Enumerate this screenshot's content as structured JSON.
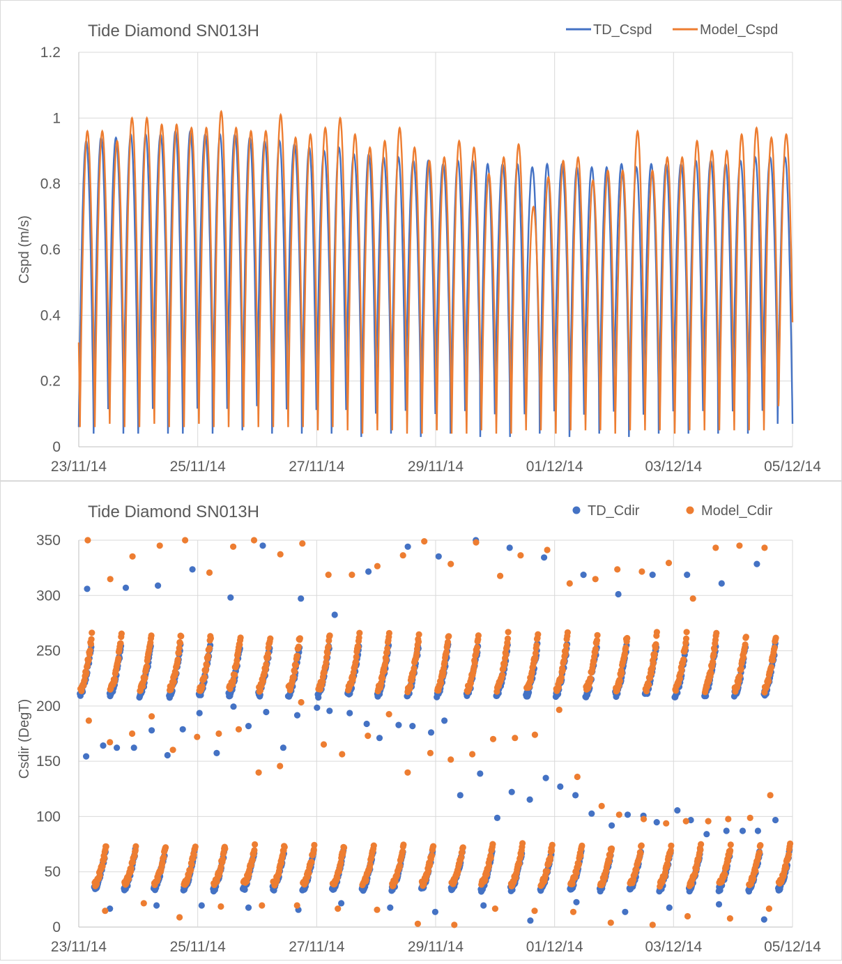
{
  "chart_data": [
    {
      "type": "line",
      "title": "Tide Diamond SN013H",
      "ylabel": "Cspd (m/s)",
      "xlabel": "",
      "x_range": [
        "2014-11-23",
        "2014-12-05"
      ],
      "x_tick_labels": [
        "23/11/14",
        "25/11/14",
        "27/11/14",
        "29/11/14",
        "01/12/14",
        "03/12/14",
        "05/12/14"
      ],
      "ylim": [
        0,
        1.2
      ],
      "y_tick_labels": [
        "0",
        "0.2",
        "0.4",
        "0.6",
        "0.8",
        "1",
        "1.2"
      ],
      "grid": true,
      "legend_position": "top-right",
      "series": [
        {
          "name": "TD_Cspd",
          "color": "#4472C4",
          "semidiurnal_peaks": [
            0.93,
            0.94,
            0.94,
            0.95,
            0.95,
            0.95,
            0.96,
            0.96,
            0.95,
            0.95,
            0.95,
            0.94,
            0.93,
            0.93,
            0.92,
            0.91,
            0.9,
            0.91,
            0.89,
            0.89,
            0.88,
            0.88,
            0.87,
            0.87,
            0.86,
            0.87,
            0.87,
            0.86,
            0.86,
            0.86,
            0.85,
            0.86,
            0.86,
            0.85,
            0.85,
            0.85,
            0.86,
            0.85,
            0.86,
            0.86,
            0.86,
            0.87,
            0.87,
            0.86,
            0.87,
            0.88,
            0.88,
            0.88
          ],
          "troughs_approx": [
            0.06,
            0.04,
            0.16,
            0.04,
            0.04,
            0.18,
            0.04,
            0.04,
            0.17,
            0.04,
            0.19,
            0.05,
            0.17,
            0.04,
            0.19,
            0.04,
            0.16,
            0.04,
            0.18,
            0.03,
            0.16,
            0.04,
            0.16,
            0.03,
            0.14,
            0.04,
            0.16,
            0.03,
            0.14,
            0.03,
            0.15,
            0.04,
            0.16,
            0.03,
            0.14,
            0.04,
            0.16,
            0.03,
            0.14,
            0.04,
            0.15,
            0.04,
            0.15,
            0.04,
            0.16,
            0.04,
            0.17,
            0.07
          ]
        },
        {
          "name": "Model_Cspd",
          "color": "#ED7D31",
          "semidiurnal_peaks": [
            0.96,
            0.96,
            0.93,
            1.0,
            1.0,
            0.98,
            0.98,
            0.97,
            0.97,
            1.02,
            0.97,
            0.96,
            0.96,
            1.01,
            0.94,
            0.95,
            0.97,
            1.0,
            0.95,
            0.91,
            0.93,
            0.97,
            0.91,
            0.87,
            0.88,
            0.93,
            0.91,
            0.83,
            0.88,
            0.92,
            0.73,
            0.82,
            0.87,
            0.88,
            0.81,
            0.84,
            0.84,
            0.96,
            0.84,
            0.88,
            0.88,
            0.93,
            0.9,
            0.9,
            0.95,
            0.97,
            0.94,
            0.95
          ],
          "troughs_approx": [
            0.06,
            0.06,
            0.07,
            0.06,
            0.06,
            0.07,
            0.06,
            0.06,
            0.07,
            0.06,
            0.06,
            0.06,
            0.05,
            0.06,
            0.06,
            0.05,
            0.05,
            0.06,
            0.05,
            0.04,
            0.05,
            0.05,
            0.04,
            0.04,
            0.05,
            0.04,
            0.04,
            0.05,
            0.04,
            0.04,
            0.05,
            0.05,
            0.04,
            0.05,
            0.05,
            0.05,
            0.04,
            0.05,
            0.05,
            0.05,
            0.04,
            0.05,
            0.05,
            0.05,
            0.05,
            0.05,
            0.05,
            0.15
          ]
        }
      ]
    },
    {
      "type": "scatter",
      "title": "Tide Diamond SN013H",
      "ylabel": "Csdir (DegT)",
      "xlabel": "",
      "x_range": [
        "2014-11-23",
        "2014-12-05"
      ],
      "x_tick_labels": [
        "23/11/14",
        "25/11/14",
        "27/11/14",
        "29/11/14",
        "01/12/14",
        "03/12/14",
        "05/12/14"
      ],
      "ylim": [
        0,
        360
      ],
      "y_tick_labels": [
        "0",
        "50",
        "100",
        "150",
        "200",
        "250",
        "300",
        "350"
      ],
      "grid": true,
      "legend_position": "top-right",
      "series": [
        {
          "name": "TD_Cdir",
          "color": "#4472C4",
          "flood_cluster_range": [
            215,
            260
          ],
          "ebb_cluster_range": [
            35,
            70
          ],
          "outliers_high": [
            313,
            314,
            316,
            331,
            305,
            353,
            304,
            289,
            329,
            352,
            343,
            358,
            351,
            342,
            326,
            308,
            326,
            326,
            318,
            336
          ],
          "outliers_mid": [
            158,
            168,
            166,
            166,
            182,
            159,
            183,
            198,
            161,
            204,
            186,
            199,
            166,
            196,
            203,
            200,
            198,
            188,
            175,
            187,
            186,
            180,
            191,
            122,
            142,
            101,
            125,
            118,
            138,
            130,
            122,
            105,
            94,
            104,
            103,
            97,
            108,
            99,
            86,
            89,
            89,
            89,
            99
          ],
          "outliers_low": [
            17,
            20,
            20,
            18,
            16,
            22,
            18,
            14,
            20,
            6,
            23,
            14,
            18,
            21,
            7
          ]
        },
        {
          "name": "Model_Cdir",
          "color": "#ED7D31",
          "flood_cluster_range": [
            220,
            270
          ],
          "ebb_cluster_range": [
            40,
            75
          ],
          "outliers_high": [
            358,
            322,
            343,
            353,
            358,
            328,
            352,
            358,
            345,
            355,
            326,
            326,
            334,
            344,
            357,
            336,
            356,
            325,
            344,
            349,
            318,
            322,
            331,
            329,
            337,
            304,
            351,
            353,
            351
          ],
          "outliers_mid": [
            191,
            171,
            179,
            195,
            164,
            176,
            179,
            183,
            143,
            149,
            208,
            169,
            160,
            177,
            197,
            143,
            161,
            155,
            160,
            174,
            175,
            178,
            201,
            139,
            112,
            104,
            100,
            96,
            98,
            98,
            100,
            101,
            122
          ],
          "outliers_low": [
            15,
            22,
            9,
            19,
            20,
            20,
            17,
            16,
            3,
            2,
            17,
            15,
            14,
            4,
            2,
            10,
            8,
            17
          ]
        }
      ]
    }
  ]
}
